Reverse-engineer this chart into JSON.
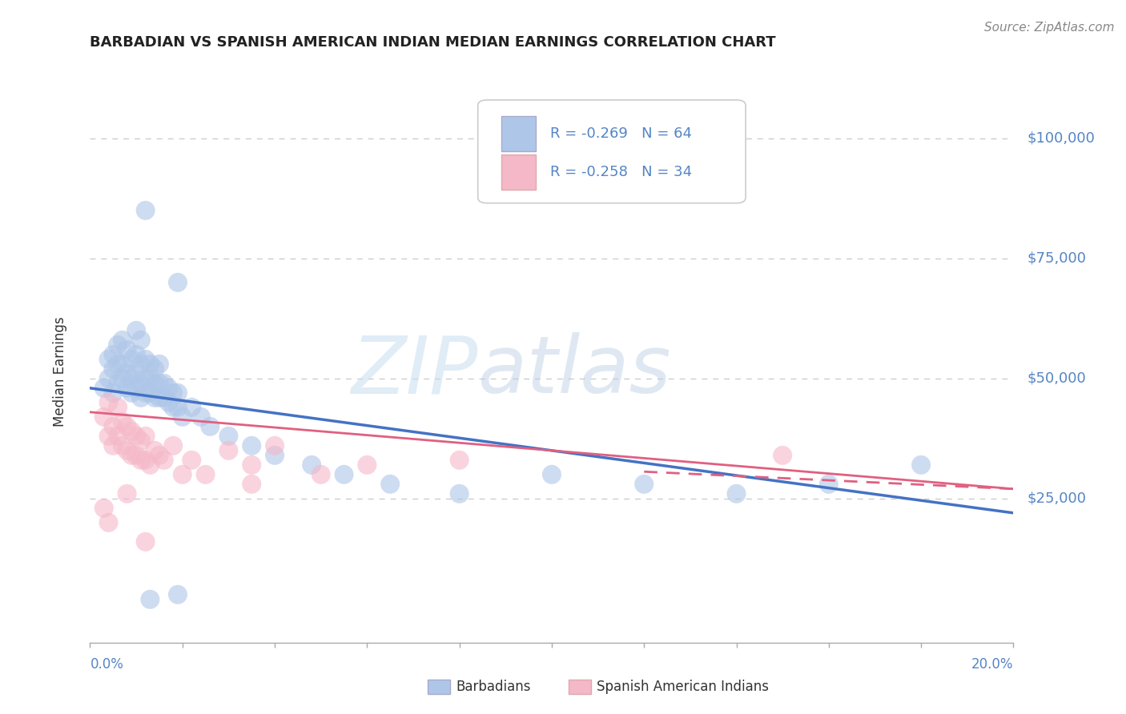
{
  "title": "BARBADIAN VS SPANISH AMERICAN INDIAN MEDIAN EARNINGS CORRELATION CHART",
  "source": "Source: ZipAtlas.com",
  "ylabel": "Median Earnings",
  "xmin": 0.0,
  "xmax": 0.2,
  "ymin": -5000,
  "ymax": 108000,
  "legend1_r": "-0.269",
  "legend1_n": "64",
  "legend2_r": "-0.258",
  "legend2_n": "34",
  "color_blue": "#aec6e8",
  "color_pink": "#f5b8c8",
  "color_blue_line": "#4472c4",
  "color_pink_line": "#e06080",
  "color_axis_text": "#5585c5",
  "color_grid": "#cccccc",
  "watermark_zip": "#c5d8ef",
  "watermark_atlas": "#b0c8e8",
  "bx": [
    0.003,
    0.004,
    0.004,
    0.005,
    0.005,
    0.005,
    0.006,
    0.006,
    0.006,
    0.007,
    0.007,
    0.007,
    0.008,
    0.008,
    0.008,
    0.009,
    0.009,
    0.009,
    0.01,
    0.01,
    0.01,
    0.01,
    0.011,
    0.011,
    0.011,
    0.011,
    0.012,
    0.012,
    0.012,
    0.013,
    0.013,
    0.013,
    0.014,
    0.014,
    0.014,
    0.015,
    0.015,
    0.015,
    0.016,
    0.016,
    0.017,
    0.017,
    0.018,
    0.018,
    0.019,
    0.019,
    0.02,
    0.022,
    0.024,
    0.026,
    0.03,
    0.035,
    0.04,
    0.048,
    0.055,
    0.065,
    0.08,
    0.1,
    0.12,
    0.14,
    0.16,
    0.18,
    0.012,
    0.019
  ],
  "by": [
    48000,
    50000,
    54000,
    47000,
    52000,
    55000,
    49000,
    53000,
    57000,
    50000,
    53000,
    58000,
    48000,
    51000,
    56000,
    47000,
    50000,
    54000,
    48000,
    51000,
    55000,
    60000,
    46000,
    49000,
    53000,
    58000,
    47000,
    50000,
    54000,
    47000,
    50000,
    53000,
    46000,
    49000,
    52000,
    46000,
    49000,
    53000,
    46000,
    49000,
    45000,
    48000,
    44000,
    47000,
    44000,
    47000,
    42000,
    44000,
    42000,
    40000,
    38000,
    36000,
    34000,
    32000,
    30000,
    28000,
    26000,
    30000,
    28000,
    26000,
    28000,
    32000,
    85000,
    70000
  ],
  "by_low": [
    4000,
    5000
  ],
  "bx_low": [
    0.013,
    0.019
  ],
  "sx": [
    0.003,
    0.004,
    0.004,
    0.005,
    0.005,
    0.006,
    0.006,
    0.007,
    0.007,
    0.008,
    0.008,
    0.009,
    0.009,
    0.01,
    0.01,
    0.011,
    0.011,
    0.012,
    0.012,
    0.013,
    0.014,
    0.015,
    0.016,
    0.018,
    0.02,
    0.022,
    0.025,
    0.03,
    0.035,
    0.04,
    0.05,
    0.06,
    0.15,
    0.08
  ],
  "sy": [
    42000,
    38000,
    45000,
    36000,
    40000,
    38000,
    44000,
    36000,
    41000,
    35000,
    40000,
    34000,
    39000,
    34000,
    38000,
    33000,
    37000,
    33000,
    38000,
    32000,
    35000,
    34000,
    33000,
    36000,
    30000,
    33000,
    30000,
    35000,
    32000,
    36000,
    30000,
    32000,
    34000,
    33000
  ],
  "sy_low": [
    23000,
    20000,
    26000,
    16000,
    28000
  ],
  "sx_low": [
    0.003,
    0.004,
    0.008,
    0.012,
    0.035
  ],
  "blue_line_x": [
    0.0,
    0.2
  ],
  "blue_line_y": [
    48000,
    22000
  ],
  "pink_line_x": [
    0.0,
    0.2
  ],
  "pink_line_y": [
    43000,
    27000
  ],
  "ytick_vals": [
    25000,
    50000,
    75000,
    100000
  ],
  "ytick_labels": [
    "$25,000",
    "$50,000",
    "$75,000",
    "$100,000"
  ]
}
